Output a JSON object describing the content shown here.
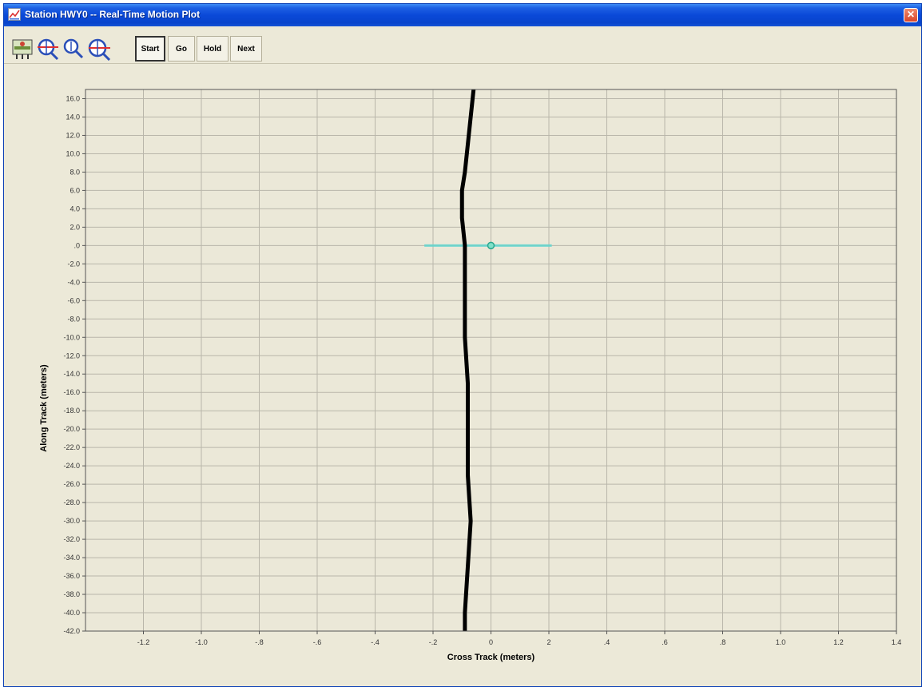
{
  "window": {
    "title": "Station HWY0 -- Real-Time Motion Plot",
    "close_glyph": "✕"
  },
  "toolbar": {
    "icons": [
      {
        "name": "settings-icon"
      },
      {
        "name": "zoom-in-icon"
      },
      {
        "name": "zoom-icon"
      },
      {
        "name": "zoom-out-icon"
      }
    ],
    "buttons": [
      "Start",
      "Go",
      "Hold",
      "Next"
    ],
    "active_button": "Start"
  },
  "colors": {
    "plot_bg": "#ebe8d8",
    "grid": "#b9b6aa",
    "track": "#000000",
    "crosshair": "#62d6cf",
    "marker": "#2aa68e"
  },
  "chart_data": {
    "type": "line",
    "xlabel": "Cross Track (meters)",
    "ylabel": "Along Track (meters)",
    "xlim": [
      -1.4,
      1.4
    ],
    "ylim": [
      -42.0,
      17.0
    ],
    "x_ticks": [
      "-1.2",
      "-1.0",
      "-.8",
      "-.6",
      "-.4",
      "-.2",
      "0",
      "2",
      ".4",
      ".6",
      ".8",
      "1.0",
      "1.2",
      "1.4"
    ],
    "y_ticks": [
      "16.0",
      "14.0",
      "12.0",
      "10.0",
      "8.0",
      "6.0",
      "4.0",
      "2.0",
      ".0",
      "-2.0",
      "-4.0",
      "-6.0",
      "-8.0",
      "-10.0",
      "-12.0",
      "-14.0",
      "-16.0",
      "-18.0",
      "-20.0",
      "-22.0",
      "-24.0",
      "-26.0",
      "-28.0",
      "-30.0",
      "-32.0",
      "-34.0",
      "-36.0",
      "-38.0",
      "-40.0",
      "-42.0"
    ],
    "series": [
      {
        "points": [
          [
            -0.06,
            17.0
          ],
          [
            -0.07,
            14.0
          ],
          [
            -0.08,
            11.0
          ],
          [
            -0.09,
            8.0
          ],
          [
            -0.1,
            6.0
          ],
          [
            -0.1,
            3.0
          ],
          [
            -0.09,
            0.0
          ],
          [
            -0.09,
            -5.0
          ],
          [
            -0.09,
            -10.0
          ],
          [
            -0.08,
            -15.0
          ],
          [
            -0.08,
            -20.0
          ],
          [
            -0.08,
            -25.0
          ],
          [
            -0.07,
            -30.0
          ],
          [
            -0.08,
            -35.0
          ],
          [
            -0.09,
            -40.0
          ],
          [
            -0.09,
            -42.0
          ]
        ]
      }
    ],
    "crosshair": {
      "x_range": [
        -0.23,
        0.21
      ],
      "y": 0.0
    },
    "marker": {
      "x": 0.0,
      "y": 0.0
    }
  }
}
